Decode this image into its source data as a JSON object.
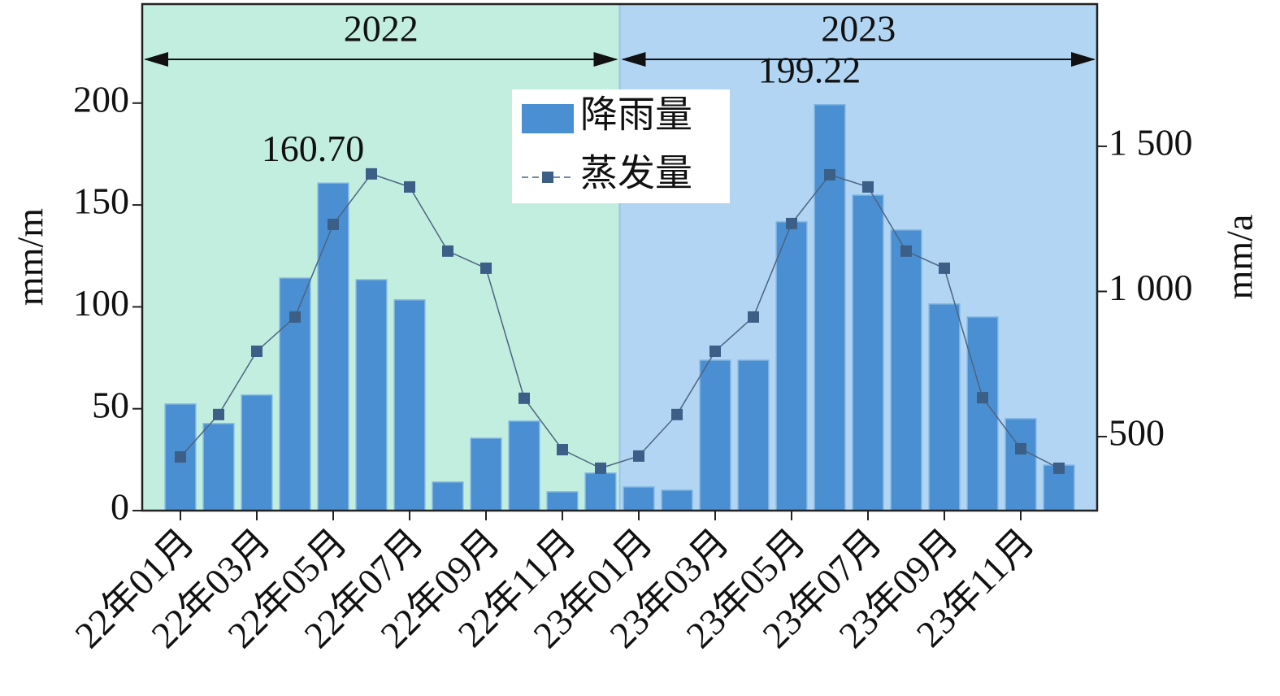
{
  "chart_data": {
    "type": "bar",
    "categories": [
      "22年01月",
      null,
      "22年03月",
      null,
      "22年05月",
      null,
      "22年07月",
      null,
      "22年09月",
      null,
      "22年11月",
      null,
      "23年01月",
      null,
      "23年03月",
      null,
      "23年05月",
      null,
      "23年07月",
      null,
      "23年09月",
      null,
      "23年11月",
      null
    ],
    "series": [
      {
        "name": "降雨量",
        "type": "bar",
        "color": "#4a8fd2",
        "values": [
          52.3,
          42.7,
          56.7,
          114.1,
          160.7,
          113.3,
          103.4,
          14,
          35.5,
          43.9,
          9.2,
          18.4,
          11.6,
          10,
          73.8,
          73.8,
          141.7,
          199.22,
          154.8,
          137.7,
          101.4,
          95,
          45.1,
          22.3
        ],
        "value_labels": [
          null,
          null,
          null,
          null,
          "160.70",
          null,
          null,
          null,
          null,
          null,
          null,
          null,
          null,
          null,
          null,
          null,
          null,
          "199.22",
          null,
          null,
          null,
          null,
          null,
          null
        ]
      },
      {
        "name": "蒸发量",
        "type": "line",
        "axis": "y2",
        "color": "#4d6480",
        "values": [
          430,
          576,
          794,
          912,
          1231,
          1405,
          1360,
          1139,
          1080,
          632,
          455,
          391,
          433,
          576,
          794,
          912,
          1234,
          1402,
          1360,
          1139,
          1080,
          634,
          458,
          391
        ]
      }
    ],
    "ylabel": "mm/m",
    "y2label": "mm/a",
    "ylim": [
      0,
      248.6
    ],
    "yticks": [
      0,
      50,
      100,
      150,
      200
    ],
    "y2lim": [
      245,
      1990
    ],
    "y2ticks": [
      500,
      {
        "value": 1000,
        "label": "1 000"
      },
      {
        "value": 1500,
        "label": "1 500"
      }
    ],
    "periods": [
      {
        "label": "2022",
        "color": "#c2eee0"
      },
      {
        "label": "2023",
        "color": "#b1d5f3"
      }
    ],
    "legend": "top-center"
  }
}
